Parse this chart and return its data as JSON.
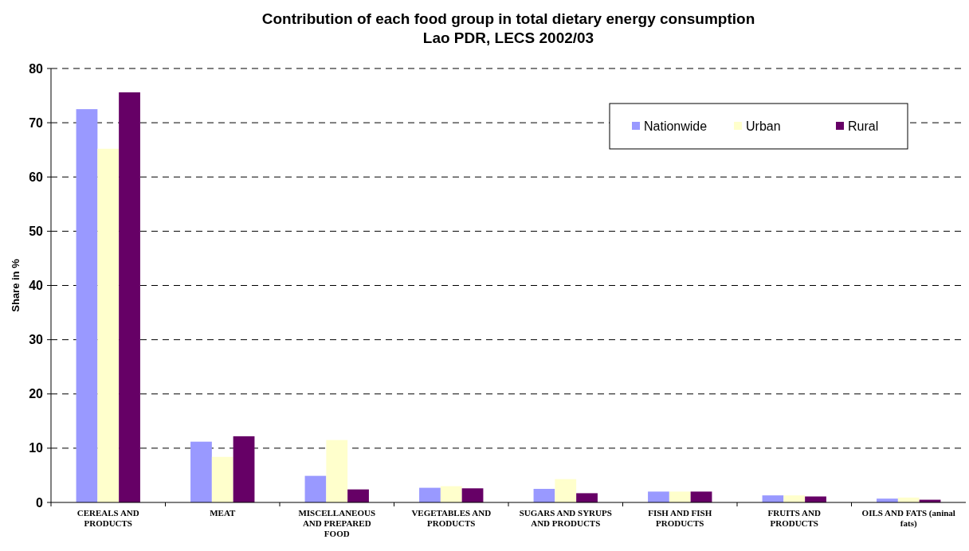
{
  "chart_data": {
    "type": "bar",
    "title": "Contribution of each food group in total dietary energy consumption",
    "subtitle": "Lao PDR, LECS 2002/03",
    "ylabel": "Share in %",
    "categories": [
      "CEREALS AND PRODUCTS",
      "MEAT",
      "MISCELLANEOUS AND PREPARED FOOD",
      "VEGETABLES AND PRODUCTS",
      "SUGARS AND SYRUPS AND PRODUCTS",
      "FISH AND FISH PRODUCTS",
      "FRUITS AND PRODUCTS",
      "OILS AND FATS (aninal fats)"
    ],
    "series": [
      {
        "name": "Nationwide",
        "color": "#9999ff",
        "values": [
          72.5,
          11.2,
          4.9,
          2.7,
          2.5,
          2.0,
          1.3,
          0.7
        ]
      },
      {
        "name": "Urban",
        "color": "#ffffcc",
        "values": [
          65.2,
          8.4,
          11.5,
          3.0,
          4.3,
          2.0,
          1.3,
          0.9
        ]
      },
      {
        "name": "Rural",
        "color": "#660066",
        "values": [
          75.6,
          12.2,
          2.4,
          2.6,
          1.7,
          2.0,
          1.1,
          0.5
        ]
      }
    ],
    "ylim": [
      0,
      80
    ],
    "yticks": [
      0,
      10,
      20,
      30,
      40,
      50,
      60,
      70,
      80
    ],
    "grid": "y",
    "legend": "top right"
  }
}
